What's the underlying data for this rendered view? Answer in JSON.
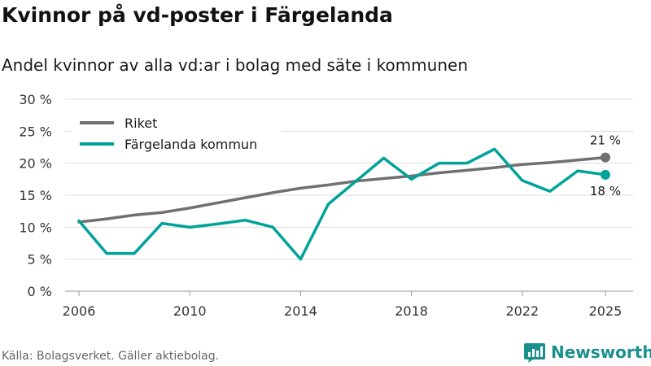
{
  "header": {
    "title": "Kvinnor på vd-poster i Färgelanda",
    "subtitle": "Andel kvinnor av alla vd:ar i bolag med säte i kommunen"
  },
  "footer": {
    "source": "Källa: Bolagsverket. Gäller aktiebolag.",
    "brand": "Newsworthy"
  },
  "colors": {
    "riket": "#707070",
    "kommun": "#00a39a",
    "brand": "#1a8f8c"
  },
  "chart_data": {
    "type": "line",
    "title": "Kvinnor på vd-poster i Färgelanda",
    "subtitle": "Andel kvinnor av alla vd:ar i bolag med säte i kommunen",
    "xlabel": "",
    "ylabel": "",
    "ylim": [
      0,
      30
    ],
    "y_ticks": [
      0,
      5,
      10,
      15,
      20,
      25,
      30
    ],
    "y_tick_labels": [
      "0 %",
      "5 %",
      "10 %",
      "15 %",
      "20 %",
      "25 %",
      "30 %"
    ],
    "x_ticks": [
      2006,
      2010,
      2014,
      2018,
      2022,
      2025
    ],
    "x_tick_labels": [
      "2006",
      "2010",
      "2014",
      "2018",
      "2022",
      "2025"
    ],
    "x": [
      2006,
      2007,
      2008,
      2009,
      2010,
      2011,
      2012,
      2013,
      2014,
      2015,
      2016,
      2017,
      2018,
      2019,
      2020,
      2021,
      2022,
      2023,
      2024,
      2025
    ],
    "legend_position": "top-left",
    "series": [
      {
        "name": "Riket",
        "color": "#707070",
        "values": [
          10.8,
          11.3,
          11.9,
          12.3,
          13.0,
          13.8,
          14.6,
          15.4,
          16.1,
          16.6,
          17.2,
          17.6,
          18.0,
          18.5,
          18.9,
          19.3,
          19.8,
          20.1,
          20.5,
          20.9
        ],
        "end_label": "21 %"
      },
      {
        "name": "Färgelanda kommun",
        "color": "#00a39a",
        "values": [
          11.0,
          5.9,
          5.9,
          10.6,
          10.0,
          10.5,
          11.1,
          10.0,
          5.0,
          13.6,
          17.2,
          20.8,
          17.5,
          20.0,
          20.0,
          22.2,
          17.3,
          15.6,
          18.8,
          18.2
        ],
        "end_label": "18 %"
      }
    ]
  }
}
